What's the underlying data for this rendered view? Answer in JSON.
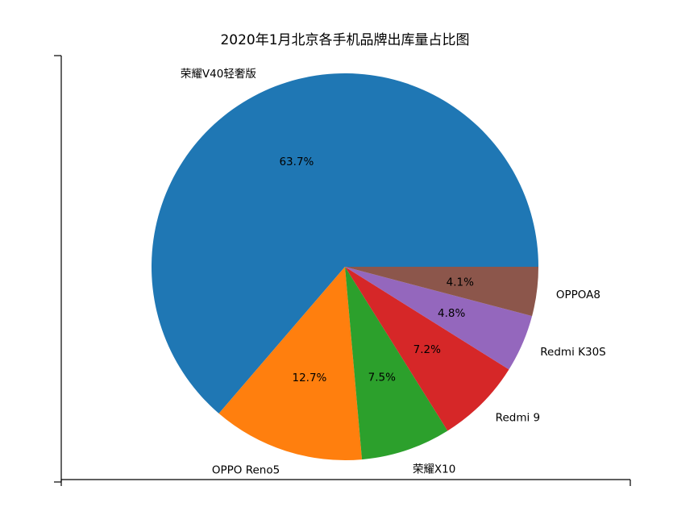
{
  "chart_data": {
    "type": "pie",
    "title": "2020年1月北京各手机品牌出库量占比图",
    "categories": [
      "荣耀V40轻奢版",
      "OPPO Reno5",
      "荣耀X10",
      "Redmi 9",
      "Redmi K30S",
      "OPPOA8"
    ],
    "values": [
      63.7,
      12.7,
      7.5,
      7.2,
      4.8,
      4.1
    ],
    "percent_labels": [
      "63.7%",
      "12.7%",
      "7.5%",
      "7.2%",
      "4.8%",
      "4.1%"
    ],
    "colors": [
      "#1f77b4",
      "#ff7f0e",
      "#2ca02c",
      "#d62728",
      "#9467bd",
      "#8c564b"
    ],
    "start_angle_deg": 0,
    "direction": "counterclockwise",
    "legend": "none"
  }
}
